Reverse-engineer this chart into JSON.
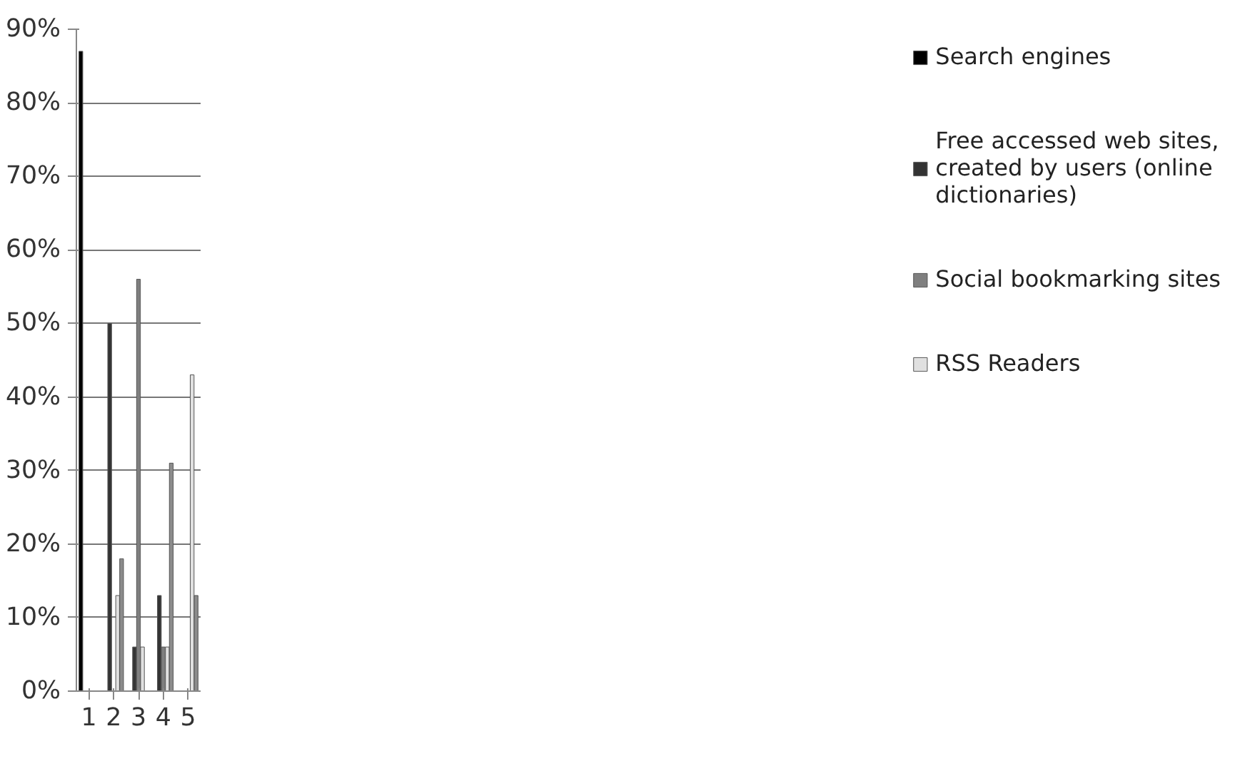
{
  "chart_data": {
    "type": "bar",
    "categories": [
      "1",
      "2",
      "3",
      "4",
      "5"
    ],
    "series": [
      {
        "name": "Search engines",
        "color": "#000000",
        "values": [
          87,
          null,
          null,
          null,
          null
        ]
      },
      {
        "name": "Free accessed web sites, created by users (online dictionaries)",
        "color": "#333333",
        "values": [
          null,
          50,
          6,
          13,
          null
        ]
      },
      {
        "name": "Social bookmarking sites",
        "color": "#7f7f7f",
        "values": [
          null,
          null,
          56,
          6,
          null
        ]
      },
      {
        "name": "RSS Readers",
        "color": "#e0e0e0",
        "values": [
          null,
          13,
          6,
          6,
          43
        ]
      },
      {
        "color": "#8c8c8c",
        "values": [
          null,
          18,
          null,
          31,
          13
        ]
      }
    ],
    "ylim": [
      0,
      90
    ],
    "yticks": [
      {
        "value": 0,
        "label": "0%"
      },
      {
        "value": 10,
        "label": "10%"
      },
      {
        "value": 20,
        "label": "20%"
      },
      {
        "value": 30,
        "label": "30%"
      },
      {
        "value": 40,
        "label": "40%"
      },
      {
        "value": 50,
        "label": "50%"
      },
      {
        "value": 60,
        "label": "60%"
      },
      {
        "value": 70,
        "label": "70%"
      },
      {
        "value": 80,
        "label": "80%"
      },
      {
        "value": 90,
        "label": "90%"
      }
    ],
    "grid": "y",
    "legend": "right"
  }
}
